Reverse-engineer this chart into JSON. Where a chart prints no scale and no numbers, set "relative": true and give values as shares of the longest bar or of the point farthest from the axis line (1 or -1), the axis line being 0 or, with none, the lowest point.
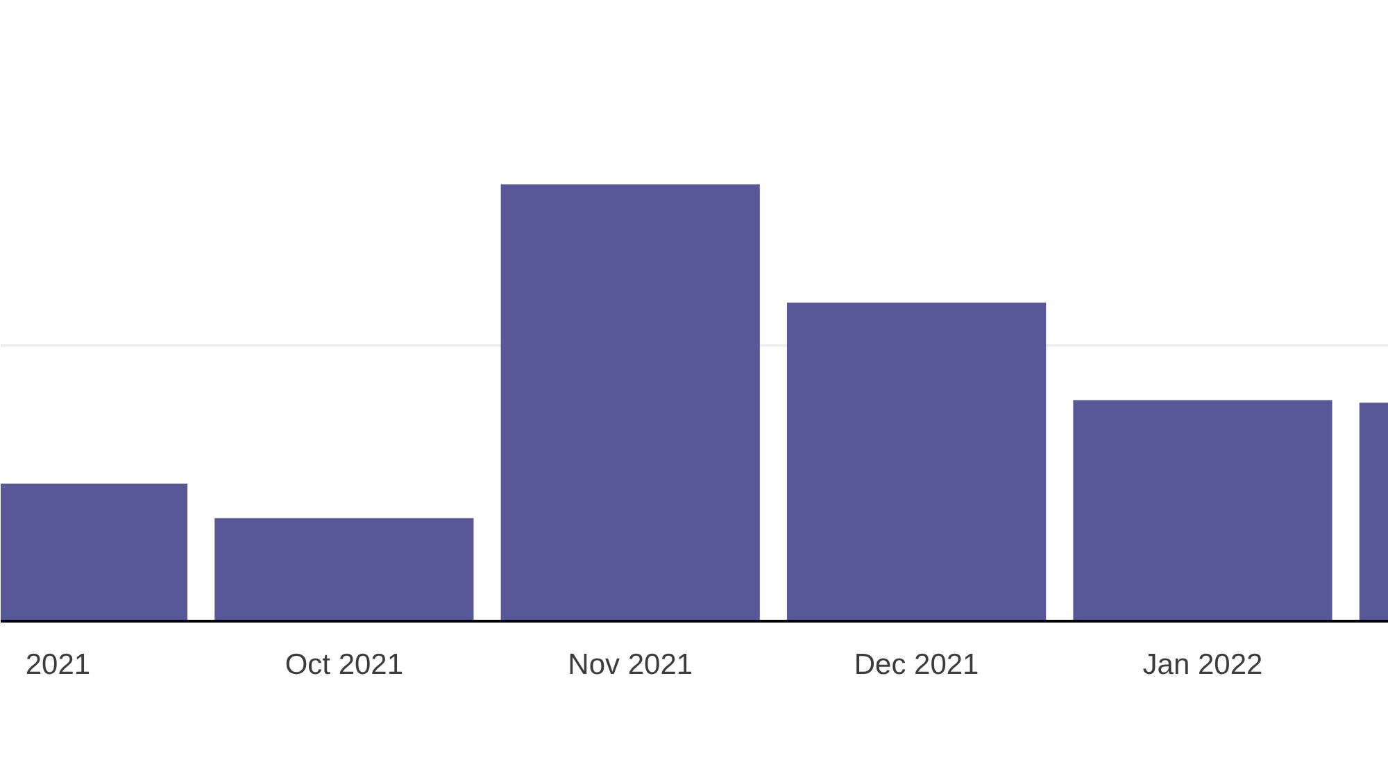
{
  "chart_data": {
    "type": "bar",
    "relative": true,
    "categories": [
      "2021",
      "Oct 2021",
      "Nov 2021",
      "Dec 2021",
      "Jan 2022",
      null
    ],
    "values": [
      0.315,
      0.236,
      1,
      0.729,
      0.506,
      0.5
    ],
    "color": "#585898",
    "ref_lines": [
      {
        "axis": "y",
        "value": 0.631,
        "color": "#eeeeee"
      }
    ]
  }
}
